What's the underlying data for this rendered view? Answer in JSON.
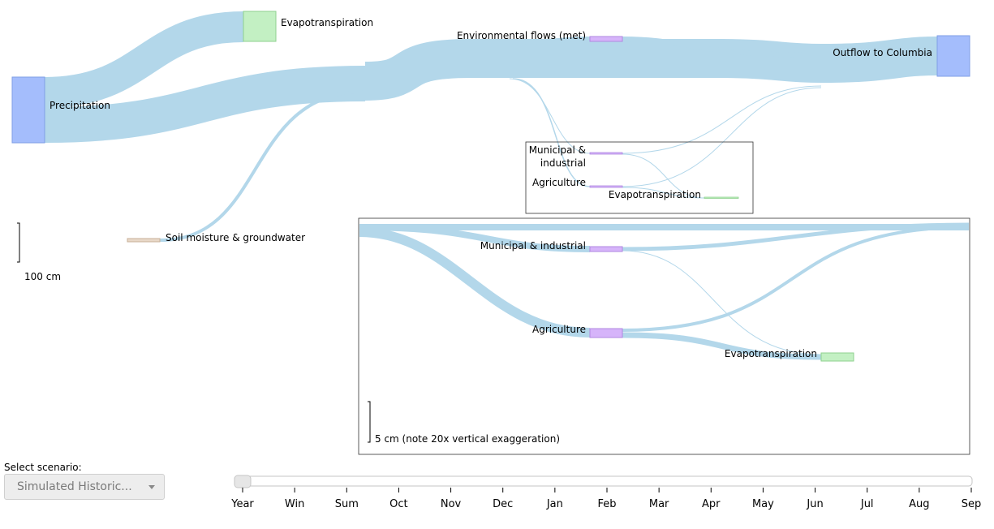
{
  "diagram": {
    "labels": {
      "precipitation": "Precipitation",
      "evapotranspiration_top": "Evapotranspiration",
      "environmental_flows": "Environmental flows (met)",
      "outflow": "Outflow to Columbia",
      "soil_moisture": "Soil moisture & groundwater",
      "inset_municipal_line1": "Municipal &",
      "inset_municipal_line2": "industrial",
      "inset_agriculture": "Agriculture",
      "inset_evapotranspiration": "Evapotranspiration",
      "zoom_municipal": "Municipal & industrial",
      "zoom_agriculture": "Agriculture",
      "zoom_evapotranspiration": "Evapotranspiration"
    },
    "scale_main": "100 cm",
    "scale_zoom": "5 cm (note 20x vertical exaggeration)",
    "colors": {
      "link": "#b3d7ea",
      "precipitation": "#a4bdfc",
      "outflow": "#a4bdfc",
      "evapotranspiration": "#c3f0c3",
      "withdrawal": "#d6b4fa",
      "soil": "#e8d8c8"
    }
  },
  "controls": {
    "scenario_label": "Select scenario:",
    "scenario_value": "Simulated Historic...",
    "timeline": {
      "ticks": [
        "Year",
        "Win",
        "Sum",
        "Oct",
        "Nov",
        "Dec",
        "Jan",
        "Feb",
        "Mar",
        "Apr",
        "May",
        "Jun",
        "Jul",
        "Aug",
        "Sep"
      ],
      "selected": "Year"
    }
  }
}
